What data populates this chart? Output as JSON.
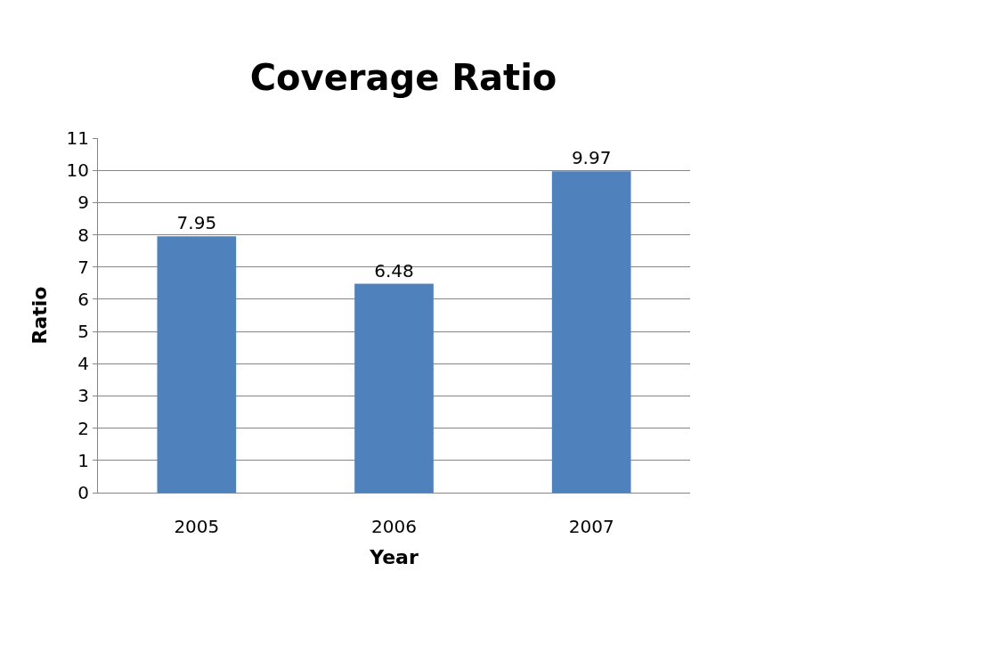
{
  "chart_data": {
    "type": "bar",
    "title": "Coverage Ratio",
    "xlabel": "Year",
    "ylabel": "Ratio",
    "categories": [
      "2005",
      "2006",
      "2007"
    ],
    "series": [
      {
        "color": "#4f81bd",
        "values": [
          7.95,
          6.48,
          9.97
        ]
      }
    ],
    "ylim": [
      0,
      11
    ],
    "yticks": [
      0,
      1,
      2,
      3,
      4,
      5,
      6,
      7,
      8,
      9,
      10,
      11
    ],
    "grid": "y",
    "data_labels": true
  }
}
